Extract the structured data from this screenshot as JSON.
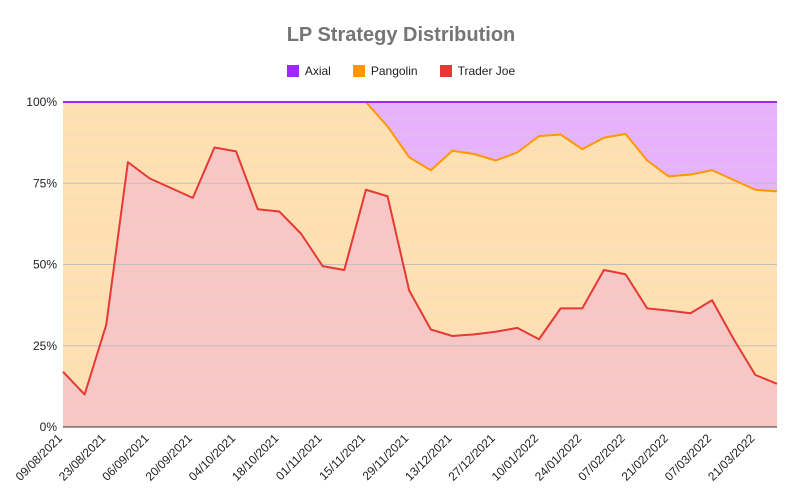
{
  "chart_data": {
    "type": "area",
    "stacked": true,
    "percent": true,
    "title": "LP Strategy Distribution",
    "xlabel": "",
    "ylabel": "",
    "ylim": [
      0,
      100
    ],
    "y_ticks": [
      "0%",
      "25%",
      "50%",
      "75%",
      "100%"
    ],
    "grid": true,
    "legend_position": "top",
    "x": [
      "09/08/2021",
      "16/08/2021",
      "23/08/2021",
      "30/08/2021",
      "06/09/2021",
      "13/09/2021",
      "20/09/2021",
      "27/09/2021",
      "04/10/2021",
      "11/10/2021",
      "18/10/2021",
      "25/10/2021",
      "01/11/2021",
      "08/11/2021",
      "15/11/2021",
      "22/11/2021",
      "29/11/2021",
      "06/12/2021",
      "13/12/2021",
      "20/12/2021",
      "27/12/2021",
      "03/01/2022",
      "10/01/2022",
      "17/01/2022",
      "24/01/2022",
      "31/01/2022",
      "07/02/2022",
      "14/02/2022",
      "21/02/2022",
      "28/02/2022",
      "07/03/2022",
      "14/03/2022",
      "21/03/2022",
      "28/03/2022"
    ],
    "x_tick_labels": [
      "09/08/2021",
      "23/08/2021",
      "06/09/2021",
      "20/09/2021",
      "04/10/2021",
      "18/10/2021",
      "01/11/2021",
      "15/11/2021",
      "29/11/2021",
      "13/12/2021",
      "27/12/2021",
      "10/01/2022",
      "24/01/2022",
      "07/02/2022",
      "21/02/2022",
      "07/03/2022",
      "21/03/2022"
    ],
    "series": [
      {
        "name": "Trader Joe",
        "color": "#e53935",
        "fill": "#f8c7c5",
        "values": [
          17,
          10,
          31.5,
          81.5,
          76.5,
          73.5,
          70.5,
          86,
          84.8,
          67,
          66.3,
          59.5,
          49.5,
          48.3,
          73,
          71,
          42,
          30,
          28,
          28.5,
          29.3,
          30.5,
          27,
          36.5,
          36.5,
          48.3,
          47,
          36.5,
          35.8,
          35,
          39,
          27,
          16,
          13.3
        ]
      },
      {
        "name": "Pangolin",
        "color": "#ff9800",
        "fill": "#ffe0b2",
        "values": [
          83,
          90,
          68.5,
          18.5,
          23.5,
          26.5,
          29.5,
          14,
          15.2,
          33,
          33.7,
          40.5,
          50.5,
          51.7,
          27,
          21.5,
          41,
          49,
          57,
          55.5,
          52.7,
          54,
          62.5,
          53.5,
          49,
          40.7,
          43.2,
          45.5,
          41.3,
          42.7,
          40,
          49,
          57,
          59.2
        ]
      },
      {
        "name": "Axial",
        "color": "#9c27ff",
        "fill": "#e6b3fb",
        "values": [
          0,
          0,
          0,
          0,
          0,
          0,
          0,
          0,
          0,
          0,
          0,
          0,
          0,
          0,
          0,
          7.5,
          17,
          21,
          15,
          16,
          18,
          15.5,
          10.5,
          10,
          14.5,
          11,
          9.8,
          18,
          22.9,
          22.3,
          21,
          24,
          27,
          27.5
        ]
      }
    ],
    "legend_order": [
      "Axial",
      "Pangolin",
      "Trader Joe"
    ]
  }
}
